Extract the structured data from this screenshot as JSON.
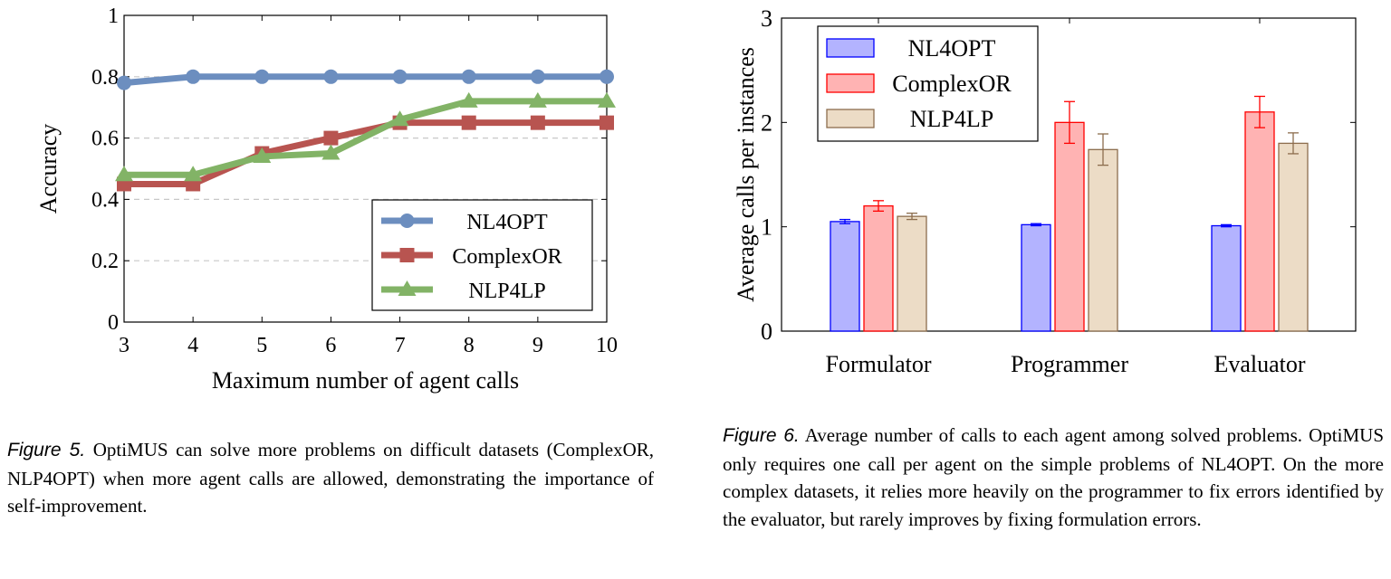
{
  "figure5": {
    "chart_data": {
      "type": "line",
      "xlabel": "Maximum number of agent calls",
      "ylabel": "Accuracy",
      "x": [
        3,
        4,
        5,
        6,
        7,
        8,
        9,
        10
      ],
      "xlim": [
        3,
        10
      ],
      "ylim": [
        0,
        1
      ],
      "yticks": [
        0,
        0.2,
        0.4,
        0.6,
        0.8,
        1
      ],
      "ytick_labels": [
        "0",
        "0.2",
        "0.4",
        "0.6",
        "0.8",
        "1"
      ],
      "xtick_labels": [
        "3",
        "4",
        "5",
        "6",
        "7",
        "8",
        "9",
        "10"
      ],
      "grid": "horizontal dashed",
      "legend_position": "bottom-right",
      "series": [
        {
          "name": "NL4OPT",
          "color": "#6c8ebf",
          "marker": "circle",
          "values": [
            0.78,
            0.8,
            0.8,
            0.8,
            0.8,
            0.8,
            0.8,
            0.8
          ]
        },
        {
          "name": "ComplexOR",
          "color": "#b85450",
          "marker": "square",
          "values": [
            0.45,
            0.45,
            0.55,
            0.6,
            0.65,
            0.65,
            0.65,
            0.65
          ]
        },
        {
          "name": "NLP4LP",
          "color": "#82b366",
          "marker": "triangle",
          "values": [
            0.48,
            0.48,
            0.54,
            0.55,
            0.66,
            0.72,
            0.72,
            0.72
          ]
        }
      ]
    },
    "caption_label": "Figure 5.",
    "caption_text": "OptiMUS can solve more problems on difficult datasets (ComplexOR, NLP4OPT) when more agent calls are allowed, demonstrating the importance of self-improvement."
  },
  "figure6": {
    "chart_data": {
      "type": "bar",
      "categories": [
        "Formulator",
        "Programmer",
        "Evaluator"
      ],
      "ylabel": "Average calls per instances",
      "ylim": [
        0,
        3
      ],
      "yticks": [
        0,
        1,
        2,
        3
      ],
      "ytick_labels": [
        "0",
        "1",
        "2",
        "3"
      ],
      "legend_position": "top-left",
      "series": [
        {
          "name": "NL4OPT",
          "fill": "#b3b3ff",
          "stroke": "#0000ff",
          "values": [
            1.05,
            1.02,
            1.01
          ],
          "errors": [
            0.02,
            0.01,
            0.01
          ]
        },
        {
          "name": "ComplexOR",
          "fill": "#ffb3b3",
          "stroke": "#ff0000",
          "values": [
            1.2,
            2.0,
            2.1
          ],
          "errors": [
            0.05,
            0.2,
            0.15
          ]
        },
        {
          "name": "NLP4LP",
          "fill": "#ecdcc6",
          "stroke": "#8c6d4d",
          "values": [
            1.1,
            1.74,
            1.8
          ],
          "errors": [
            0.03,
            0.15,
            0.1
          ]
        }
      ]
    },
    "caption_label": "Figure 6.",
    "caption_text": "Average number of calls to each agent among solved problems. OptiMUS only requires one call per agent on the simple problems of NL4OPT. On the more complex datasets, it relies more heavily on the programmer to fix errors identified by the evaluator, but rarely improves by fixing formulation errors."
  }
}
